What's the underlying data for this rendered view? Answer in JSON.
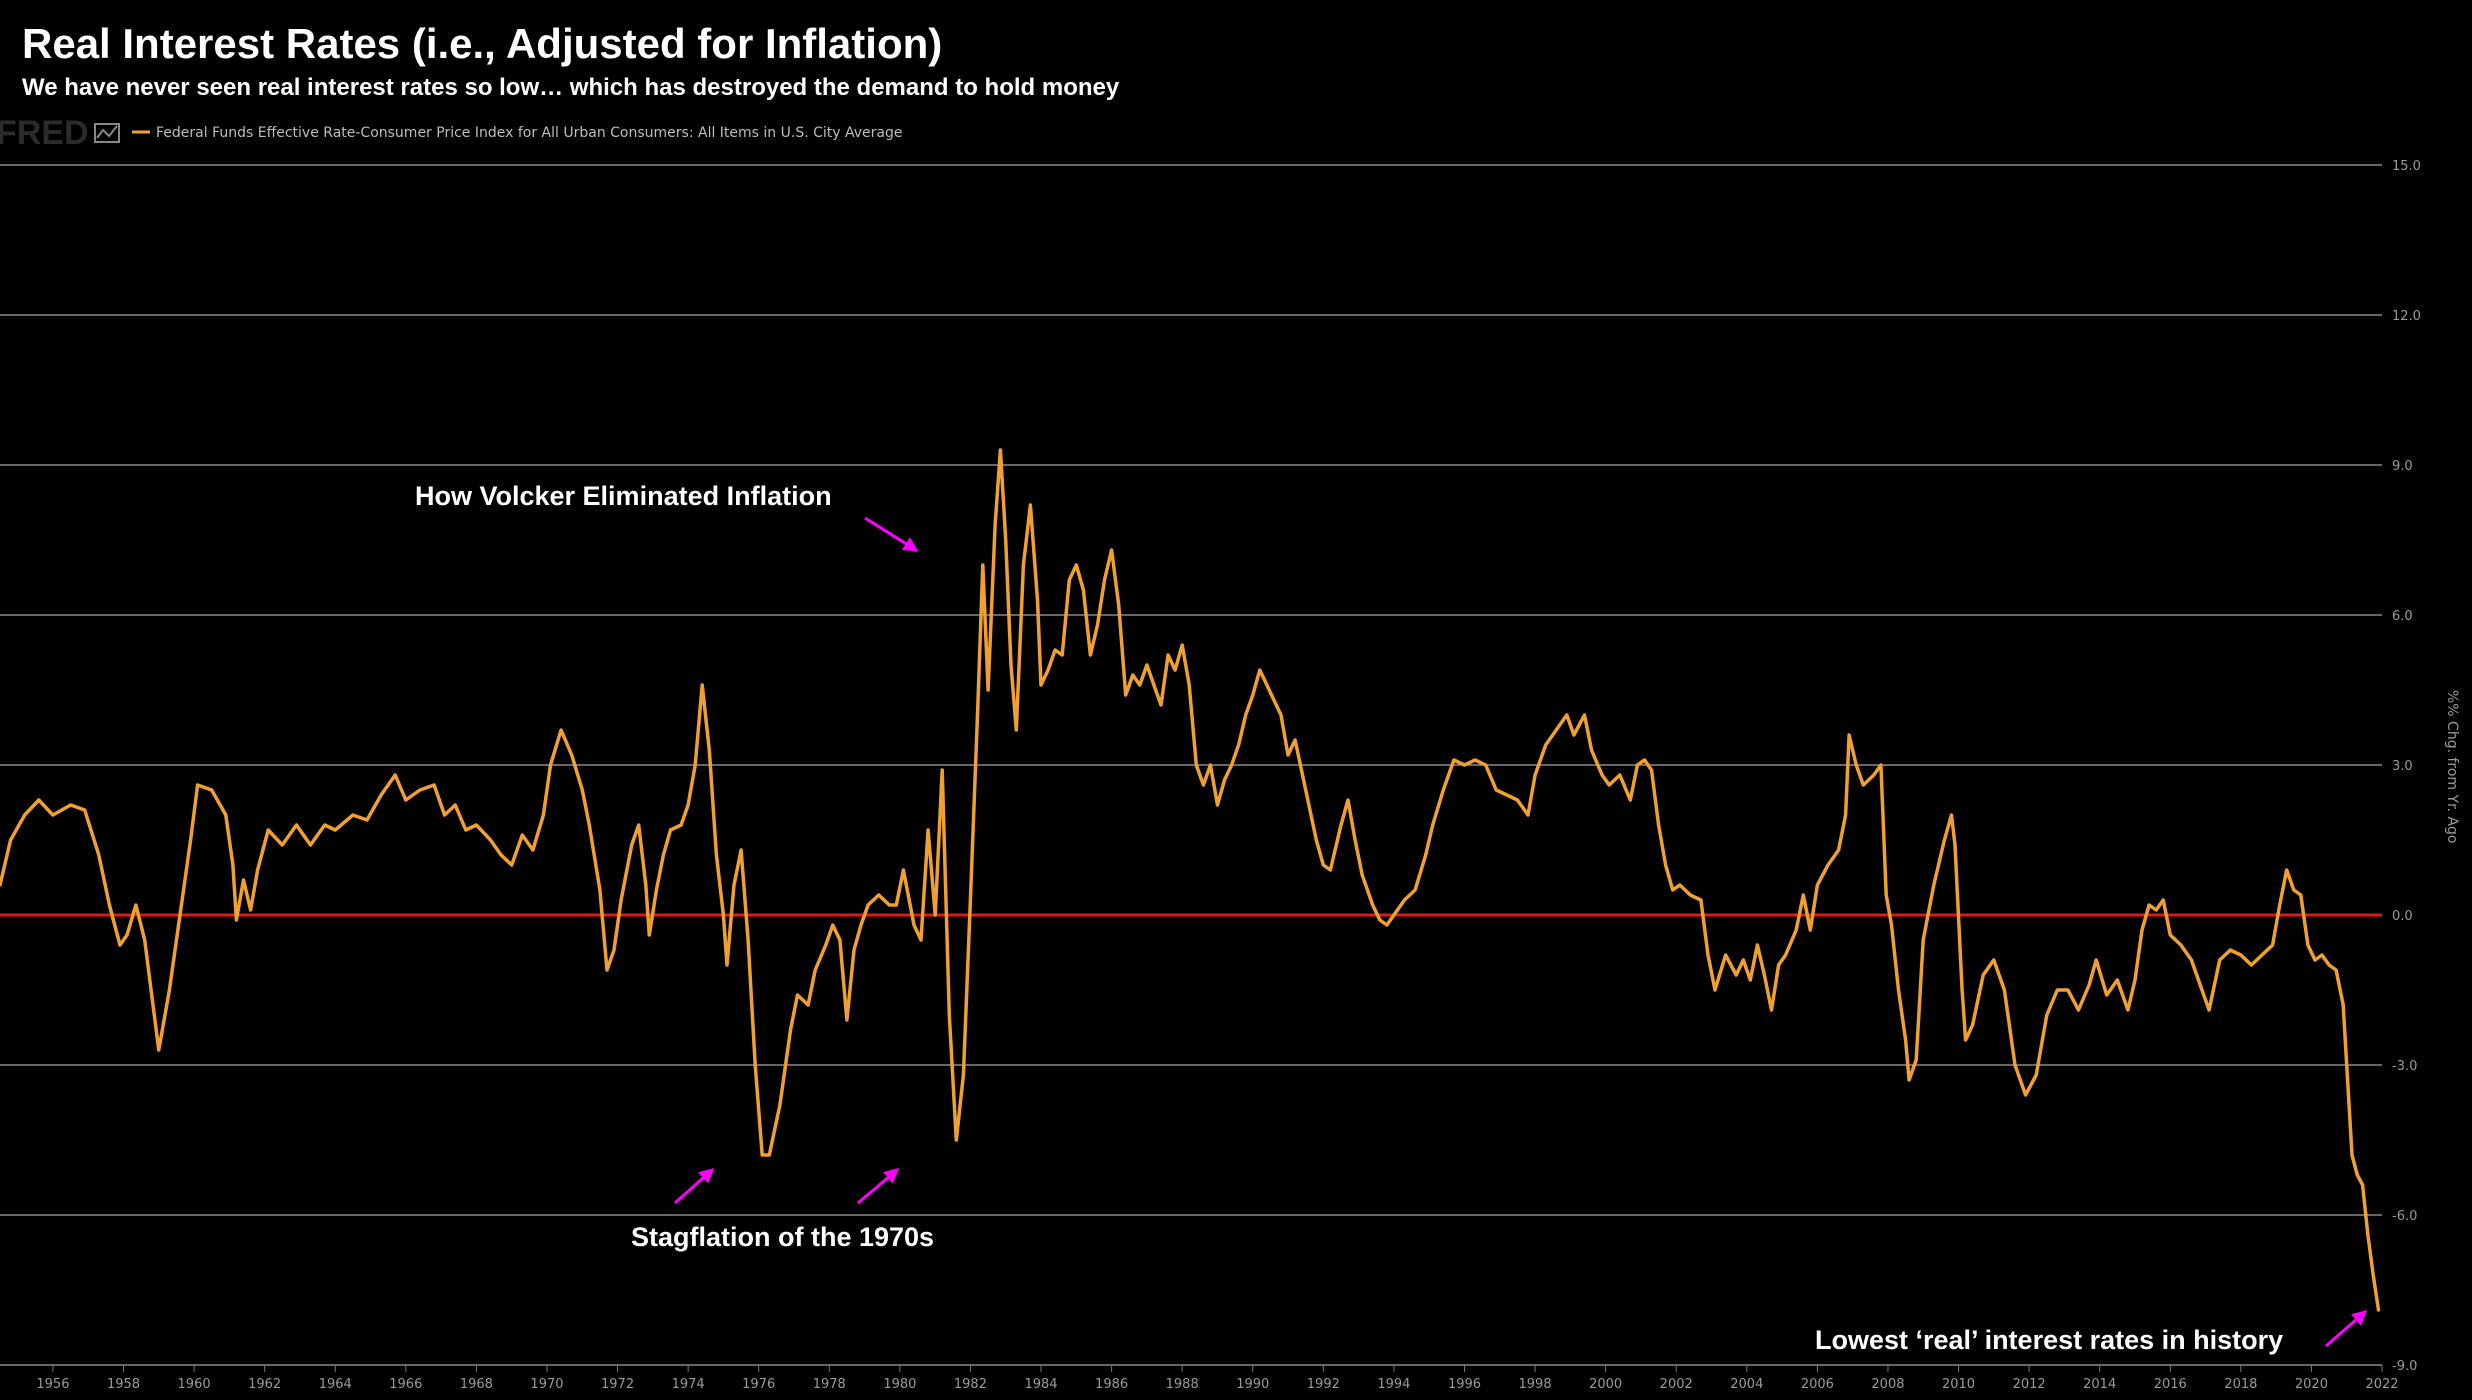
{
  "title": "Real Interest Rates (i.e., Adjusted for Inflation)",
  "subtitle": "We have never seen real interest rates so low… which has destroyed the demand to hold money",
  "logo_text": "FRED",
  "colors": {
    "background": "#000000",
    "line": "#f0a030",
    "zero_line": "#e01818",
    "grid": "#8a8a8a",
    "arrow": "#ff00ff",
    "text": "#ffffff"
  },
  "chart_data": {
    "type": "line",
    "title": "Real Interest Rates (i.e., Adjusted for Inflation)",
    "legend": [
      "Federal Funds Effective Rate-Consumer Price Index for All Urban Consumers: All Items in U.S. City Average"
    ],
    "ylabel": "%% Chg. from Yr. Ago",
    "xlim": [
      1954.5,
      2022.0
    ],
    "ylim": [
      -9.0,
      15.0
    ],
    "x_ticks": [
      "1956",
      "1958",
      "1960",
      "1962",
      "1964",
      "1966",
      "1968",
      "1970",
      "1972",
      "1974",
      "1976",
      "1978",
      "1980",
      "1982",
      "1984",
      "1986",
      "1988",
      "1990",
      "1992",
      "1994",
      "1996",
      "1998",
      "2000",
      "2002",
      "2004",
      "2006",
      "2008",
      "2010",
      "2012",
      "2014",
      "2016",
      "2018",
      "2020",
      "2022"
    ],
    "y_ticks": [
      "15.0",
      "12.0",
      "9.0",
      "6.0",
      "3.0",
      "0.0",
      "-3.0",
      "-6.0",
      "-9.0"
    ],
    "reference_line": 0.0,
    "series": [
      {
        "name": "Federal Funds Effective Rate-Consumer Price Index for All Urban Consumers: All Items in U.S. City Average",
        "points": [
          [
            1954.5,
            0.6
          ],
          [
            1954.8,
            1.5
          ],
          [
            1955.2,
            2.0
          ],
          [
            1955.6,
            2.3
          ],
          [
            1956.0,
            2.0
          ],
          [
            1956.5,
            2.2
          ],
          [
            1956.9,
            2.1
          ],
          [
            1957.3,
            1.2
          ],
          [
            1957.6,
            0.2
          ],
          [
            1957.9,
            -0.6
          ],
          [
            1958.1,
            -0.4
          ],
          [
            1958.35,
            0.2
          ],
          [
            1958.6,
            -0.5
          ],
          [
            1958.8,
            -1.6
          ],
          [
            1959.0,
            -2.7
          ],
          [
            1959.3,
            -1.5
          ],
          [
            1959.6,
            0.0
          ],
          [
            1959.9,
            1.5
          ],
          [
            1960.1,
            2.6
          ],
          [
            1960.5,
            2.5
          ],
          [
            1960.9,
            2.0
          ],
          [
            1961.1,
            1.0
          ],
          [
            1961.2,
            -0.1
          ],
          [
            1961.4,
            0.7
          ],
          [
            1961.6,
            0.1
          ],
          [
            1961.8,
            0.9
          ],
          [
            1962.1,
            1.7
          ],
          [
            1962.5,
            1.4
          ],
          [
            1962.9,
            1.8
          ],
          [
            1963.3,
            1.4
          ],
          [
            1963.7,
            1.8
          ],
          [
            1964.0,
            1.7
          ],
          [
            1964.5,
            2.0
          ],
          [
            1964.9,
            1.9
          ],
          [
            1965.3,
            2.4
          ],
          [
            1965.7,
            2.8
          ],
          [
            1966.0,
            2.3
          ],
          [
            1966.4,
            2.5
          ],
          [
            1966.8,
            2.6
          ],
          [
            1967.1,
            2.0
          ],
          [
            1967.4,
            2.2
          ],
          [
            1967.7,
            1.7
          ],
          [
            1968.0,
            1.8
          ],
          [
            1968.4,
            1.5
          ],
          [
            1968.7,
            1.2
          ],
          [
            1969.0,
            1.0
          ],
          [
            1969.3,
            1.6
          ],
          [
            1969.6,
            1.3
          ],
          [
            1969.9,
            2.0
          ],
          [
            1970.1,
            3.0
          ],
          [
            1970.4,
            3.7
          ],
          [
            1970.7,
            3.2
          ],
          [
            1971.0,
            2.5
          ],
          [
            1971.2,
            1.8
          ],
          [
            1971.5,
            0.5
          ],
          [
            1971.7,
            -1.1
          ],
          [
            1971.9,
            -0.7
          ],
          [
            1972.1,
            0.3
          ],
          [
            1972.4,
            1.4
          ],
          [
            1972.6,
            1.8
          ],
          [
            1972.8,
            0.6
          ],
          [
            1972.9,
            -0.4
          ],
          [
            1973.1,
            0.5
          ],
          [
            1973.3,
            1.2
          ],
          [
            1973.5,
            1.7
          ],
          [
            1973.8,
            1.8
          ],
          [
            1974.0,
            2.2
          ],
          [
            1974.2,
            3.0
          ],
          [
            1974.4,
            4.6
          ],
          [
            1974.6,
            3.3
          ],
          [
            1974.8,
            1.2
          ],
          [
            1975.0,
            0.0
          ],
          [
            1975.1,
            -1.0
          ],
          [
            1975.3,
            0.6
          ],
          [
            1975.5,
            1.3
          ],
          [
            1975.7,
            -0.5
          ],
          [
            1975.9,
            -3.0
          ],
          [
            1976.1,
            -4.8
          ],
          [
            1976.3,
            -4.8
          ],
          [
            1976.6,
            -3.8
          ],
          [
            1976.9,
            -2.3
          ],
          [
            1977.1,
            -1.6
          ],
          [
            1977.4,
            -1.8
          ],
          [
            1977.6,
            -1.1
          ],
          [
            1977.9,
            -0.6
          ],
          [
            1978.1,
            -0.2
          ],
          [
            1978.3,
            -0.5
          ],
          [
            1978.5,
            -2.1
          ],
          [
            1978.7,
            -0.7
          ],
          [
            1978.9,
            -0.2
          ],
          [
            1979.1,
            0.2
          ],
          [
            1979.4,
            0.4
          ],
          [
            1979.7,
            0.2
          ],
          [
            1979.9,
            0.2
          ],
          [
            1980.1,
            0.9
          ],
          [
            1980.4,
            -0.2
          ],
          [
            1980.6,
            -0.5
          ],
          [
            1980.8,
            1.7
          ],
          [
            1981.0,
            0.0
          ],
          [
            1981.2,
            2.9
          ],
          [
            1981.4,
            -2.0
          ],
          [
            1981.6,
            -4.5
          ],
          [
            1981.8,
            -3.2
          ],
          [
            1982.0,
            0.3
          ],
          [
            1982.2,
            4.0
          ],
          [
            1982.35,
            7.0
          ],
          [
            1982.5,
            4.5
          ],
          [
            1982.7,
            7.8
          ],
          [
            1982.85,
            9.3
          ],
          [
            1983.0,
            7.5
          ],
          [
            1983.15,
            5.0
          ],
          [
            1983.3,
            3.7
          ],
          [
            1983.5,
            7.0
          ],
          [
            1983.7,
            8.2
          ],
          [
            1983.9,
            6.3
          ],
          [
            1984.0,
            4.6
          ],
          [
            1984.2,
            4.9
          ],
          [
            1984.4,
            5.3
          ],
          [
            1984.6,
            5.2
          ],
          [
            1984.8,
            6.7
          ],
          [
            1985.0,
            7.0
          ],
          [
            1985.2,
            6.5
          ],
          [
            1985.4,
            5.2
          ],
          [
            1985.6,
            5.8
          ],
          [
            1985.8,
            6.7
          ],
          [
            1986.0,
            7.3
          ],
          [
            1986.2,
            6.2
          ],
          [
            1986.4,
            4.4
          ],
          [
            1986.6,
            4.8
          ],
          [
            1986.8,
            4.6
          ],
          [
            1987.0,
            5.0
          ],
          [
            1987.2,
            4.6
          ],
          [
            1987.4,
            4.2
          ],
          [
            1987.6,
            5.2
          ],
          [
            1987.8,
            4.9
          ],
          [
            1988.0,
            5.4
          ],
          [
            1988.2,
            4.6
          ],
          [
            1988.4,
            3.0
          ],
          [
            1988.6,
            2.6
          ],
          [
            1988.8,
            3.0
          ],
          [
            1989.0,
            2.2
          ],
          [
            1989.2,
            2.7
          ],
          [
            1989.4,
            3.0
          ],
          [
            1989.6,
            3.4
          ],
          [
            1989.8,
            4.0
          ],
          [
            1990.0,
            4.4
          ],
          [
            1990.2,
            4.9
          ],
          [
            1990.4,
            4.6
          ],
          [
            1990.6,
            4.3
          ],
          [
            1990.8,
            4.0
          ],
          [
            1991.0,
            3.2
          ],
          [
            1991.2,
            3.5
          ],
          [
            1991.5,
            2.5
          ],
          [
            1991.8,
            1.5
          ],
          [
            1992.0,
            1.0
          ],
          [
            1992.2,
            0.9
          ],
          [
            1992.5,
            1.8
          ],
          [
            1992.7,
            2.3
          ],
          [
            1992.9,
            1.5
          ],
          [
            1993.1,
            0.8
          ],
          [
            1993.4,
            0.2
          ],
          [
            1993.6,
            -0.1
          ],
          [
            1993.8,
            -0.2
          ],
          [
            1994.0,
            0.0
          ],
          [
            1994.3,
            0.3
          ],
          [
            1994.6,
            0.5
          ],
          [
            1994.9,
            1.2
          ],
          [
            1995.1,
            1.8
          ],
          [
            1995.4,
            2.5
          ],
          [
            1995.7,
            3.1
          ],
          [
            1996.0,
            3.0
          ],
          [
            1996.3,
            3.1
          ],
          [
            1996.6,
            3.0
          ],
          [
            1996.9,
            2.5
          ],
          [
            1997.2,
            2.4
          ],
          [
            1997.5,
            2.3
          ],
          [
            1997.8,
            2.0
          ],
          [
            1998.0,
            2.8
          ],
          [
            1998.3,
            3.4
          ],
          [
            1998.6,
            3.7
          ],
          [
            1998.9,
            4.0
          ],
          [
            1999.1,
            3.6
          ],
          [
            1999.4,
            4.0
          ],
          [
            1999.6,
            3.3
          ],
          [
            1999.9,
            2.8
          ],
          [
            2000.1,
            2.6
          ],
          [
            2000.4,
            2.8
          ],
          [
            2000.7,
            2.3
          ],
          [
            2000.9,
            3.0
          ],
          [
            2001.1,
            3.1
          ],
          [
            2001.3,
            2.9
          ],
          [
            2001.5,
            1.8
          ],
          [
            2001.7,
            1.0
          ],
          [
            2001.9,
            0.5
          ],
          [
            2002.1,
            0.6
          ],
          [
            2002.4,
            0.4
          ],
          [
            2002.7,
            0.3
          ],
          [
            2002.9,
            -0.8
          ],
          [
            2003.1,
            -1.5
          ],
          [
            2003.4,
            -0.8
          ],
          [
            2003.7,
            -1.2
          ],
          [
            2003.9,
            -0.9
          ],
          [
            2004.1,
            -1.3
          ],
          [
            2004.3,
            -0.6
          ],
          [
            2004.5,
            -1.2
          ],
          [
            2004.7,
            -1.9
          ],
          [
            2004.9,
            -1.0
          ],
          [
            2005.1,
            -0.8
          ],
          [
            2005.4,
            -0.3
          ],
          [
            2005.6,
            0.4
          ],
          [
            2005.8,
            -0.3
          ],
          [
            2006.0,
            0.6
          ],
          [
            2006.3,
            1.0
          ],
          [
            2006.6,
            1.3
          ],
          [
            2006.8,
            2.0
          ],
          [
            2006.9,
            3.6
          ],
          [
            2007.1,
            3.0
          ],
          [
            2007.3,
            2.6
          ],
          [
            2007.6,
            2.8
          ],
          [
            2007.8,
            3.0
          ],
          [
            2007.95,
            0.4
          ],
          [
            2008.1,
            -0.2
          ],
          [
            2008.3,
            -1.5
          ],
          [
            2008.5,
            -2.5
          ],
          [
            2008.6,
            -3.3
          ],
          [
            2008.8,
            -2.9
          ],
          [
            2009.0,
            -0.5
          ],
          [
            2009.3,
            0.6
          ],
          [
            2009.6,
            1.5
          ],
          [
            2009.8,
            2.0
          ],
          [
            2009.9,
            1.4
          ],
          [
            2010.1,
            -1.5
          ],
          [
            2010.2,
            -2.5
          ],
          [
            2010.4,
            -2.2
          ],
          [
            2010.7,
            -1.2
          ],
          [
            2011.0,
            -0.9
          ],
          [
            2011.3,
            -1.5
          ],
          [
            2011.6,
            -3.0
          ],
          [
            2011.9,
            -3.6
          ],
          [
            2012.2,
            -3.2
          ],
          [
            2012.5,
            -2.0
          ],
          [
            2012.8,
            -1.5
          ],
          [
            2013.1,
            -1.5
          ],
          [
            2013.4,
            -1.9
          ],
          [
            2013.7,
            -1.4
          ],
          [
            2013.9,
            -0.9
          ],
          [
            2014.2,
            -1.6
          ],
          [
            2014.5,
            -1.3
          ],
          [
            2014.8,
            -1.9
          ],
          [
            2015.0,
            -1.3
          ],
          [
            2015.2,
            -0.3
          ],
          [
            2015.4,
            0.2
          ],
          [
            2015.6,
            0.1
          ],
          [
            2015.8,
            0.3
          ],
          [
            2016.0,
            -0.4
          ],
          [
            2016.3,
            -0.6
          ],
          [
            2016.6,
            -0.9
          ],
          [
            2016.9,
            -1.5
          ],
          [
            2017.1,
            -1.9
          ],
          [
            2017.4,
            -0.9
          ],
          [
            2017.7,
            -0.7
          ],
          [
            2018.0,
            -0.8
          ],
          [
            2018.3,
            -1.0
          ],
          [
            2018.6,
            -0.8
          ],
          [
            2018.9,
            -0.6
          ],
          [
            2019.1,
            0.2
          ],
          [
            2019.3,
            0.9
          ],
          [
            2019.5,
            0.5
          ],
          [
            2019.7,
            0.4
          ],
          [
            2019.9,
            -0.6
          ],
          [
            2020.1,
            -0.9
          ],
          [
            2020.3,
            -0.8
          ],
          [
            2020.5,
            -1.0
          ],
          [
            2020.7,
            -1.1
          ],
          [
            2020.9,
            -1.8
          ],
          [
            2021.0,
            -3.0
          ],
          [
            2021.15,
            -4.8
          ],
          [
            2021.3,
            -5.2
          ],
          [
            2021.45,
            -5.4
          ],
          [
            2021.6,
            -6.4
          ],
          [
            2021.75,
            -7.2
          ],
          [
            2021.9,
            -7.9
          ]
        ]
      }
    ],
    "annotations": [
      "How Volcker Eliminated Inflation",
      "Stagflation of the 1970s",
      "Lowest ‘real’ interest rates in history"
    ]
  }
}
